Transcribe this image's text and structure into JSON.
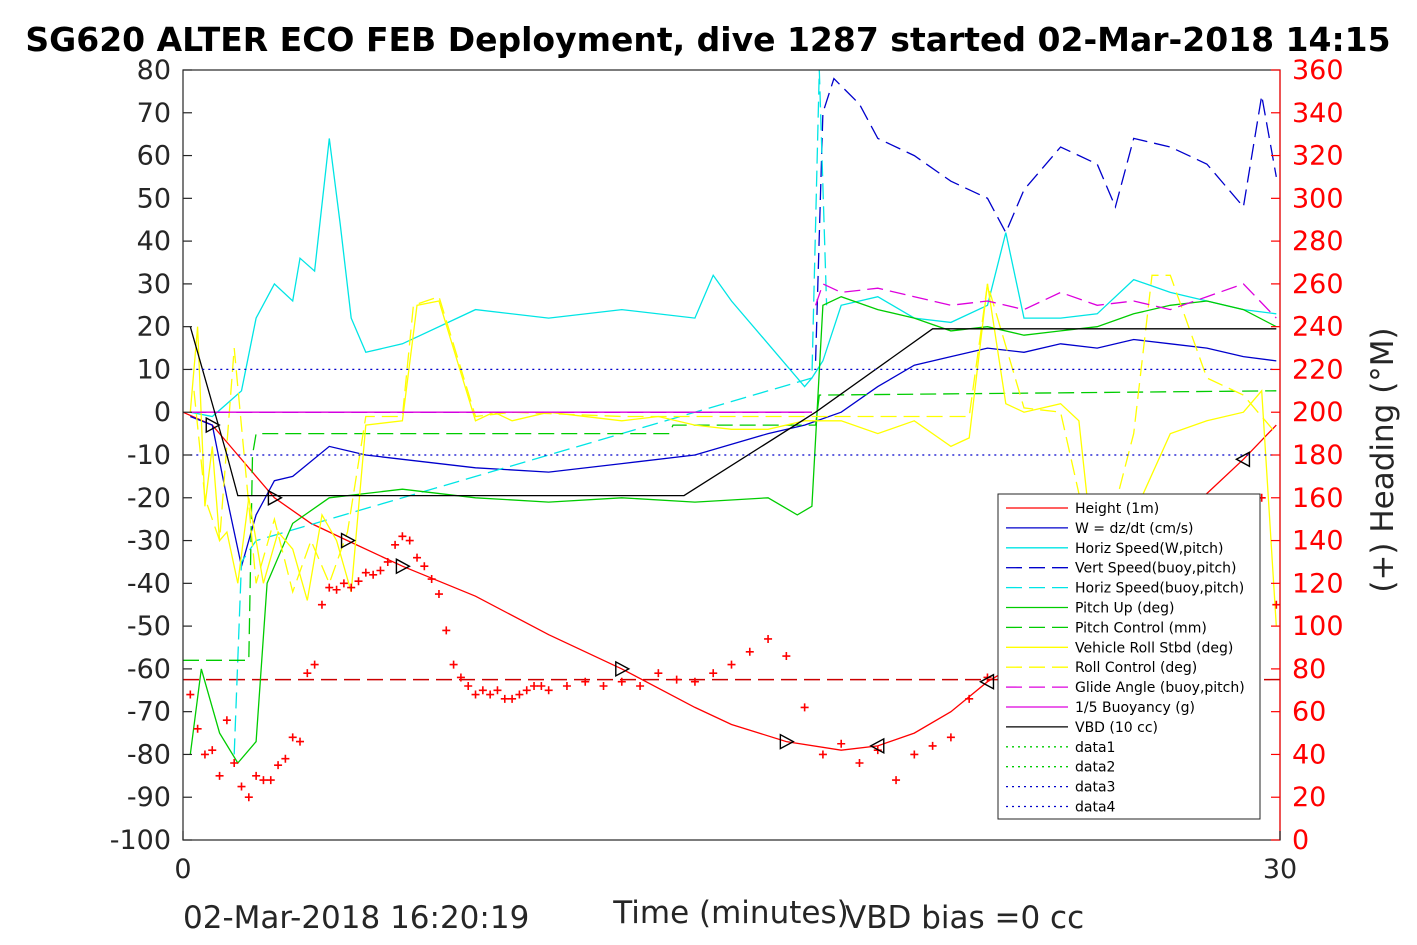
{
  "chart_data": {
    "type": "line",
    "title": "SG620 ALTER ECO FEB Deployment, dive 1287 started 02-Mar-2018 14:15",
    "xlabel": "Time (minutes)",
    "ylabel_right": "(+) Heading (°M)",
    "footer_left": "02-Mar-2018 16:20:19",
    "footer_right": "VBD bias =0 cc",
    "xlim": [
      0,
      30
    ],
    "ylim": [
      -100,
      80
    ],
    "ylim_right": [
      0,
      360
    ],
    "x_ticks": [
      "0",
      "30"
    ],
    "y_ticks": [
      "80",
      "70",
      "60",
      "50",
      "40",
      "30",
      "20",
      "10",
      "0",
      "-10",
      "-20",
      "-30",
      "-40",
      "-50",
      "-60",
      "-70",
      "-80",
      "-90",
      "-100"
    ],
    "y_right_ticks": [
      "360",
      "340",
      "320",
      "300",
      "280",
      "260",
      "240",
      "220",
      "200",
      "180",
      "160",
      "140",
      "120",
      "100",
      "80",
      "60",
      "40",
      "20",
      "0"
    ],
    "grid": false,
    "legend_position": "lower-right",
    "series": [
      {
        "name": "Height (1m)",
        "color": "#ff0000",
        "style": "solid",
        "x": [
          0,
          0.8,
          1.5,
          2.5,
          3.5,
          4.5,
          6,
          8,
          10,
          12,
          14,
          15,
          16.5,
          18,
          19,
          20,
          21,
          22,
          23,
          24,
          25,
          26,
          27,
          28,
          29,
          29.9
        ],
        "y": [
          0,
          -3,
          -10,
          -20,
          -26,
          -30,
          -36,
          -43,
          -52,
          -60,
          -69,
          -73,
          -77,
          -79,
          -78,
          -75,
          -70,
          -63,
          -58,
          -52,
          -45,
          -37,
          -27,
          -19,
          -11,
          -3
        ]
      },
      {
        "name": "W = dz/dt (cm/s)",
        "color": "#0000cc",
        "style": "solid",
        "x": [
          0.2,
          0.8,
          1.2,
          1.6,
          2,
          2.5,
          3,
          4,
          5,
          6,
          8,
          10,
          12,
          14,
          16,
          17,
          18,
          19,
          20,
          21,
          22,
          23,
          24,
          25,
          26,
          27,
          28,
          29,
          29.9
        ],
        "y": [
          -1,
          -3,
          -20,
          -36,
          -24,
          -16,
          -15,
          -8,
          -10,
          -11,
          -13,
          -14,
          -12,
          -10,
          -5,
          -3,
          0,
          6,
          11,
          13,
          15,
          14,
          16,
          15,
          17,
          16,
          15,
          13,
          12
        ]
      },
      {
        "name": "Horiz Speed(W,pitch)",
        "color": "#00e5e5",
        "style": "solid",
        "x": [
          0.2,
          0.8,
          1.2,
          1.6,
          2,
          2.5,
          3,
          3.2,
          3.6,
          4,
          4.3,
          4.6,
          5,
          6,
          8,
          10,
          12,
          14,
          14.5,
          15,
          16,
          17,
          17.2,
          17.5,
          18,
          19,
          20,
          21,
          22,
          22.5,
          23,
          24,
          25,
          26,
          27,
          28,
          29,
          29.9
        ],
        "y": [
          0,
          -1,
          2,
          5,
          22,
          30,
          26,
          36,
          33,
          64,
          44,
          22,
          14,
          16,
          24,
          22,
          24,
          22,
          32,
          26,
          16,
          6,
          8,
          12,
          25,
          27,
          22,
          21,
          25,
          42,
          22,
          22,
          23,
          31,
          28,
          26,
          24,
          23
        ]
      },
      {
        "name": "Vert Speed(buoy,pitch)",
        "color": "#0000cc",
        "style": "dashed",
        "x": [
          17.3,
          17.5,
          17.8,
          18.5,
          19,
          20,
          21,
          22,
          22.5,
          23,
          24,
          25,
          25.5,
          26,
          27,
          28,
          29,
          29.5,
          29.9
        ],
        "y": [
          12,
          70,
          78,
          72,
          64,
          60,
          54,
          50,
          42,
          52,
          62,
          58,
          48,
          64,
          62,
          58,
          48,
          74,
          55
        ]
      },
      {
        "name": "Horiz Speed(buoy,pitch)",
        "color": "#00e5e5",
        "style": "dashed",
        "x": [
          1.4,
          1.6,
          2,
          17.2,
          17.4,
          17.6
        ],
        "y": [
          -80,
          -35,
          -30,
          8,
          80,
          25
        ]
      },
      {
        "name": "Pitch Up (deg)",
        "color": "#00cc00",
        "style": "solid",
        "x": [
          0.2,
          0.5,
          1,
          1.5,
          2,
          2.3,
          3,
          4,
          5,
          6,
          8,
          10,
          12,
          14,
          16,
          16.8,
          17.2,
          17.5,
          18,
          19,
          20,
          21,
          22,
          23,
          24,
          25,
          26,
          27,
          28,
          29,
          29.9
        ],
        "y": [
          -80,
          -60,
          -75,
          -82,
          -77,
          -40,
          -26,
          -20,
          -19,
          -18,
          -20,
          -21,
          -20,
          -21,
          -20,
          -24,
          -22,
          25,
          27,
          24,
          22,
          19,
          20,
          18,
          19,
          20,
          23,
          25,
          26,
          24,
          20
        ]
      },
      {
        "name": "Pitch Control (mm)",
        "color": "#00cc00",
        "style": "dashed",
        "x": [
          0,
          1.8,
          1.9,
          2,
          13.3,
          13.4,
          17.3,
          17.4,
          29.9
        ],
        "y": [
          -58,
          -58,
          -10,
          -5,
          -5,
          -3,
          -3,
          4,
          5
        ]
      },
      {
        "name": "Vehicle Roll Stbd (deg)",
        "color": "#ffff00",
        "style": "solid",
        "x": [
          0.2,
          0.4,
          0.6,
          0.8,
          1,
          1.2,
          1.5,
          1.8,
          2.2,
          2.6,
          3,
          3.4,
          3.8,
          4.2,
          4.6,
          5,
          6,
          6.4,
          7,
          8,
          8.5,
          9,
          10,
          12,
          13,
          14,
          15,
          16,
          17,
          18,
          19,
          20,
          21,
          21.5,
          22,
          22.5,
          23,
          24,
          24.5,
          25,
          26,
          27,
          28,
          29,
          29.5,
          29.9
        ],
        "y": [
          0,
          20,
          -22,
          -8,
          -30,
          -28,
          -40,
          -20,
          -40,
          -28,
          -32,
          -44,
          -24,
          -30,
          -42,
          -3,
          -2,
          25,
          26,
          -2,
          0,
          -2,
          0,
          -2,
          -1,
          -3,
          -4,
          -4,
          -2,
          -2,
          -5,
          -2,
          -8,
          -6,
          30,
          2,
          0,
          2,
          -2,
          -42,
          -24,
          -5,
          -2,
          0,
          5,
          -50
        ]
      },
      {
        "name": "Roll Control (deg)",
        "color": "#ffff00",
        "style": "dashed",
        "x": [
          0.3,
          0.6,
          1,
          1.4,
          2,
          2.5,
          3,
          3.5,
          4,
          4.5,
          5,
          6,
          6.3,
          7,
          8,
          9,
          12,
          17,
          20,
          21.5,
          22,
          23,
          24,
          25,
          26,
          26.5,
          27,
          28,
          29,
          29.9
        ],
        "y": [
          5,
          -20,
          -30,
          15,
          -40,
          -25,
          -42,
          -30,
          -40,
          -28,
          -1,
          -1,
          25,
          27,
          -1,
          0,
          -1,
          -1,
          -1,
          -1,
          30,
          1,
          0,
          -38,
          -5,
          32,
          32,
          8,
          4,
          -5
        ]
      },
      {
        "name": "Glide Angle (buoy,pitch)",
        "color": "#dd00dd",
        "style": "dashed",
        "x": [
          17.3,
          17.5,
          18,
          19,
          20,
          21,
          22,
          23,
          24,
          25,
          26,
          27,
          28,
          29,
          29.9
        ],
        "y": [
          25,
          30,
          28,
          29,
          27,
          25,
          26,
          24,
          28,
          25,
          26,
          24,
          27,
          30,
          22
        ]
      },
      {
        "name": "1/5 Buoyancy (g)",
        "color": "#dd00dd",
        "style": "solid",
        "x": [
          0.2,
          17.2
        ],
        "y": [
          0,
          0
        ]
      },
      {
        "name": "VBD (10 cc)",
        "color": "#000000",
        "style": "solid",
        "x": [
          0.2,
          1.2,
          1.5,
          13.7,
          17.3,
          20.5,
          29.9
        ],
        "y": [
          20,
          -10,
          -19.5,
          -19.5,
          0,
          19.5,
          19.5
        ]
      },
      {
        "name": "data1",
        "color": "#00cc00",
        "style": "dotted",
        "x": [],
        "y": []
      },
      {
        "name": "data2",
        "color": "#00cc00",
        "style": "dotted",
        "x": [],
        "y": []
      },
      {
        "name": "data3",
        "color": "#0000cc",
        "style": "dotted",
        "x": [
          0.2,
          29.9
        ],
        "y": [
          10,
          10
        ]
      },
      {
        "name": "data4",
        "color": "#0000cc",
        "style": "dotted",
        "x": [
          0.2,
          29.9
        ],
        "y": [
          -10,
          -10
        ]
      }
    ],
    "reference_lines": [
      {
        "color": "#7f00ff",
        "style": "dashed",
        "y": 0,
        "x": [
          0.2,
          17.2
        ]
      },
      {
        "color": "#cc0000",
        "style": "dashed",
        "y": -62.5,
        "x": [
          0,
          30
        ]
      }
    ],
    "heading_points": {
      "color": "#ff0000",
      "marker": "+",
      "axis": "right",
      "x": [
        0.2,
        0.4,
        0.6,
        0.8,
        1,
        1.2,
        1.4,
        1.6,
        1.8,
        2,
        2.2,
        2.4,
        2.6,
        2.8,
        3,
        3.2,
        3.4,
        3.6,
        3.8,
        4,
        4.2,
        4.4,
        4.6,
        4.8,
        5,
        5.2,
        5.4,
        5.6,
        5.8,
        6,
        6.2,
        6.4,
        6.6,
        6.8,
        7,
        7.2,
        7.4,
        7.6,
        7.8,
        8,
        8.2,
        8.4,
        8.6,
        8.8,
        9,
        9.2,
        9.4,
        9.6,
        9.8,
        10,
        10.5,
        11,
        11.5,
        12,
        12.5,
        13,
        13.5,
        14,
        14.5,
        15,
        15.5,
        16,
        16.5,
        17,
        17.5,
        18,
        18.5,
        19,
        19.5,
        20,
        20.5,
        21,
        21.5,
        22,
        22.5,
        23,
        23.5,
        24,
        24.5,
        25,
        25.5,
        26,
        26.5,
        27,
        27.5,
        28,
        28.5,
        29,
        29.5,
        29.9
      ],
      "y": [
        68,
        52,
        40,
        42,
        30,
        56,
        36,
        25,
        20,
        30,
        28,
        28,
        35,
        38,
        48,
        46,
        78,
        82,
        110,
        118,
        117,
        120,
        118,
        121,
        125,
        124,
        126,
        130,
        138,
        142,
        140,
        132,
        128,
        122,
        115,
        98,
        82,
        76,
        72,
        68,
        70,
        68,
        70,
        66,
        66,
        68,
        70,
        72,
        72,
        70,
        72,
        74,
        72,
        74,
        72,
        78,
        75,
        74,
        78,
        82,
        88,
        94,
        86,
        62,
        40,
        45,
        36,
        42,
        28,
        40,
        44,
        48,
        66,
        76,
        90,
        110,
        124,
        138,
        146,
        112,
        84,
        70,
        58,
        46,
        38,
        56,
        82,
        120,
        160,
        110
      ]
    }
  }
}
